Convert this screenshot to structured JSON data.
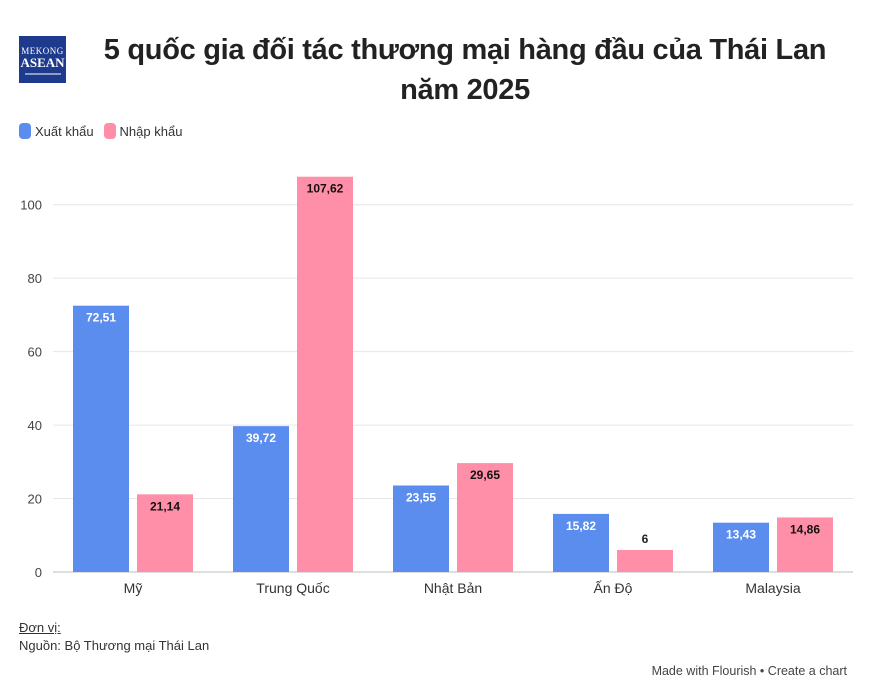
{
  "logo": {
    "line1": "MEKONG",
    "line2": "ASEAN"
  },
  "title": "5 quốc gia đối tác thương mại hàng đầu của Thái Lan năm 2025",
  "colors": {
    "export": "#5b8def",
    "import": "#ff8fa8",
    "grid": "#e6e6e6"
  },
  "chart_data": {
    "type": "bar",
    "categories": [
      "Mỹ",
      "Trung Quốc",
      "Nhật Bản",
      "Ấn Độ",
      "Malaysia"
    ],
    "series": [
      {
        "name": "Xuất khẩu",
        "values": [
          72.51,
          39.72,
          23.55,
          15.82,
          13.43
        ],
        "labels": [
          "72,51",
          "39,72",
          "23,55",
          "15,82",
          "13,43"
        ]
      },
      {
        "name": "Nhập khẩu",
        "values": [
          21.14,
          107.62,
          29.65,
          6,
          14.86
        ],
        "labels": [
          "21,14",
          "107,62",
          "29,65",
          "6",
          "14,86"
        ]
      }
    ],
    "yticks": [
      0,
      20,
      40,
      60,
      80,
      100
    ],
    "ylim": [
      0,
      110
    ],
    "grid": true,
    "legend": "top-left"
  },
  "footer": {
    "unit": "Đơn vị:",
    "source": "Nguồn: Bộ Thương mại Thái Lan",
    "made_with": "Made with Flourish • Create a chart"
  }
}
